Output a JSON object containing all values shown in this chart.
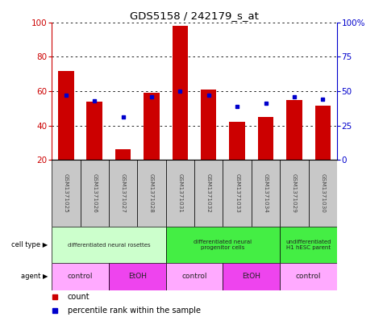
{
  "title": "GDS5158 / 242179_s_at",
  "samples": [
    "GSM1371025",
    "GSM1371026",
    "GSM1371027",
    "GSM1371028",
    "GSM1371031",
    "GSM1371032",
    "GSM1371033",
    "GSM1371034",
    "GSM1371029",
    "GSM1371030"
  ],
  "counts": [
    71.5,
    54.0,
    26.5,
    59.0,
    98.0,
    61.0,
    42.0,
    45.0,
    55.0,
    51.5
  ],
  "percentiles": [
    47,
    43,
    31,
    46,
    50,
    47,
    39,
    41,
    46,
    44
  ],
  "y_min": 20,
  "y_max": 100,
  "y_ticks_left": [
    20,
    40,
    60,
    80,
    100
  ],
  "y_ticks_right": [
    0,
    25,
    50,
    75,
    100
  ],
  "y_ticks_right_labels": [
    "0",
    "25",
    "50",
    "75",
    "100%"
  ],
  "bar_color": "#CC0000",
  "dot_color": "#0000CC",
  "bar_width": 0.55,
  "cell_type_groups": [
    {
      "label": "differentiated neural rosettes",
      "start": 0,
      "end": 4,
      "color": "#ccffcc"
    },
    {
      "label": "differentiated neural\nprogenitor cells",
      "start": 4,
      "end": 8,
      "color": "#44ee44"
    },
    {
      "label": "undifferentiated\nH1 hESC parent",
      "start": 8,
      "end": 10,
      "color": "#44ee44"
    }
  ],
  "agent_groups": [
    {
      "label": "control",
      "start": 0,
      "end": 2,
      "color": "#ffaaff"
    },
    {
      "label": "EtOH",
      "start": 2,
      "end": 4,
      "color": "#ee44ee"
    },
    {
      "label": "control",
      "start": 4,
      "end": 6,
      "color": "#ffaaff"
    },
    {
      "label": "EtOH",
      "start": 6,
      "end": 8,
      "color": "#ee44ee"
    },
    {
      "label": "control",
      "start": 8,
      "end": 10,
      "color": "#ffaaff"
    }
  ],
  "legend_count_color": "#CC0000",
  "legend_percentile_color": "#0000CC",
  "left_label_color": "#CC0000",
  "right_label_color": "#0000CC"
}
